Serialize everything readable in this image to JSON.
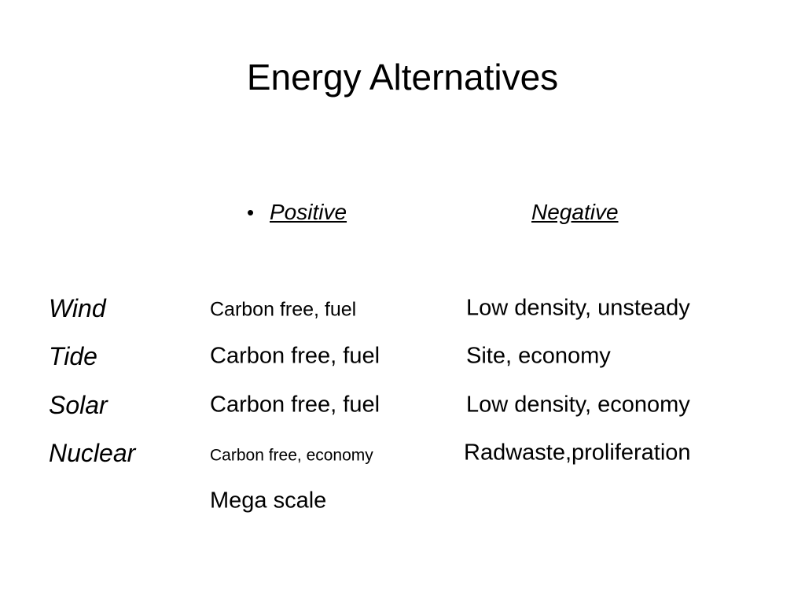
{
  "title": "Energy Alternatives",
  "headers": {
    "positive": "Positive",
    "negative": "Negative"
  },
  "rows": [
    {
      "label": "Wind",
      "positive": "Carbon free, fuel",
      "negative": "Low density, unsteady"
    },
    {
      "label": "Tide",
      "positive": "Carbon free, fuel",
      "negative": "Site, economy"
    },
    {
      "label": "Solar",
      "positive": "Carbon free, fuel",
      "negative": "Low density, economy"
    },
    {
      "label": "Nuclear",
      "positive": "Carbon free, economy",
      "negative": "Radwaste,proliferation"
    }
  ],
  "extra": "Mega scale"
}
